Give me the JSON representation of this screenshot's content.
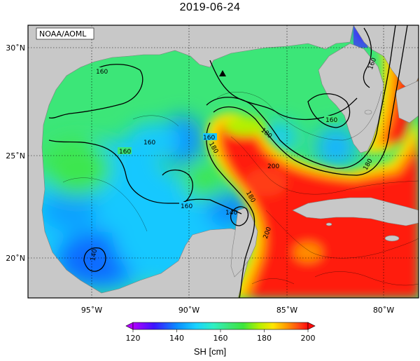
{
  "title": "2019-06-24",
  "source_label": "NOAA/AOML",
  "colorbar": {
    "label": "SH [cm]",
    "ticks": [
      "120",
      "140",
      "160",
      "180",
      "200"
    ],
    "min": 120,
    "max": 200,
    "colors": [
      "#b300ff",
      "#3c14ff",
      "#0a8cff",
      "#19d2ff",
      "#2ef0c3",
      "#3ce878",
      "#3ce63c",
      "#b4f000",
      "#ffe600",
      "#ff9600",
      "#ff4614",
      "#ff0a0a"
    ]
  },
  "axes": {
    "lon_labels": [
      "95˚W",
      "90˚W",
      "85˚W",
      "80˚W"
    ],
    "lat_labels": [
      "30˚N",
      "25˚N",
      "20˚N"
    ]
  },
  "contour_labels": [
    "160",
    "160",
    "160",
    "160",
    "160",
    "160",
    "180",
    "180",
    "200",
    "180",
    "180",
    "200",
    "140",
    "140",
    "160"
  ],
  "colors": {
    "land": "#c8c8c8",
    "sea_base": "#3ce678",
    "high": "#ff1a0a",
    "low": "#0a8cff"
  }
}
